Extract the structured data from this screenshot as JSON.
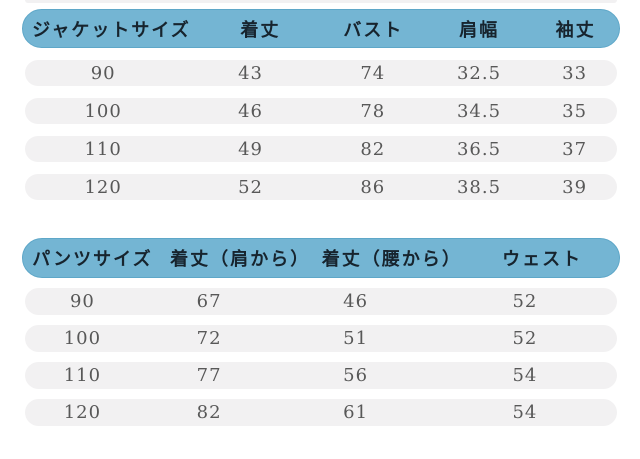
{
  "colors": {
    "header-bg": "#74b5d3",
    "header-edge": "#5ea7c8",
    "header-text": "#17242e",
    "row-bg": "#f2f1f2",
    "row-text": "#585858",
    "canvas-bg": "#ffffff"
  },
  "chart_data": [
    {
      "type": "table",
      "columns": [
        "ジャケットサイズ",
        "着丈",
        "バスト",
        "肩幅",
        "袖丈"
      ],
      "rows": [
        [
          "90",
          "43",
          "74",
          "32.5",
          "33"
        ],
        [
          "100",
          "46",
          "78",
          "34.5",
          "35"
        ],
        [
          "110",
          "49",
          "82",
          "36.5",
          "37"
        ],
        [
          "120",
          "52",
          "86",
          "38.5",
          "39"
        ]
      ]
    },
    {
      "type": "table",
      "columns": [
        "パンツサイズ",
        "着丈（肩から）",
        "着丈（腰から）",
        "ウェスト"
      ],
      "rows": [
        [
          "90",
          "67",
          "46",
          "52"
        ],
        [
          "100",
          "72",
          "51",
          "52"
        ],
        [
          "110",
          "77",
          "56",
          "54"
        ],
        [
          "120",
          "82",
          "61",
          "54"
        ]
      ]
    }
  ]
}
